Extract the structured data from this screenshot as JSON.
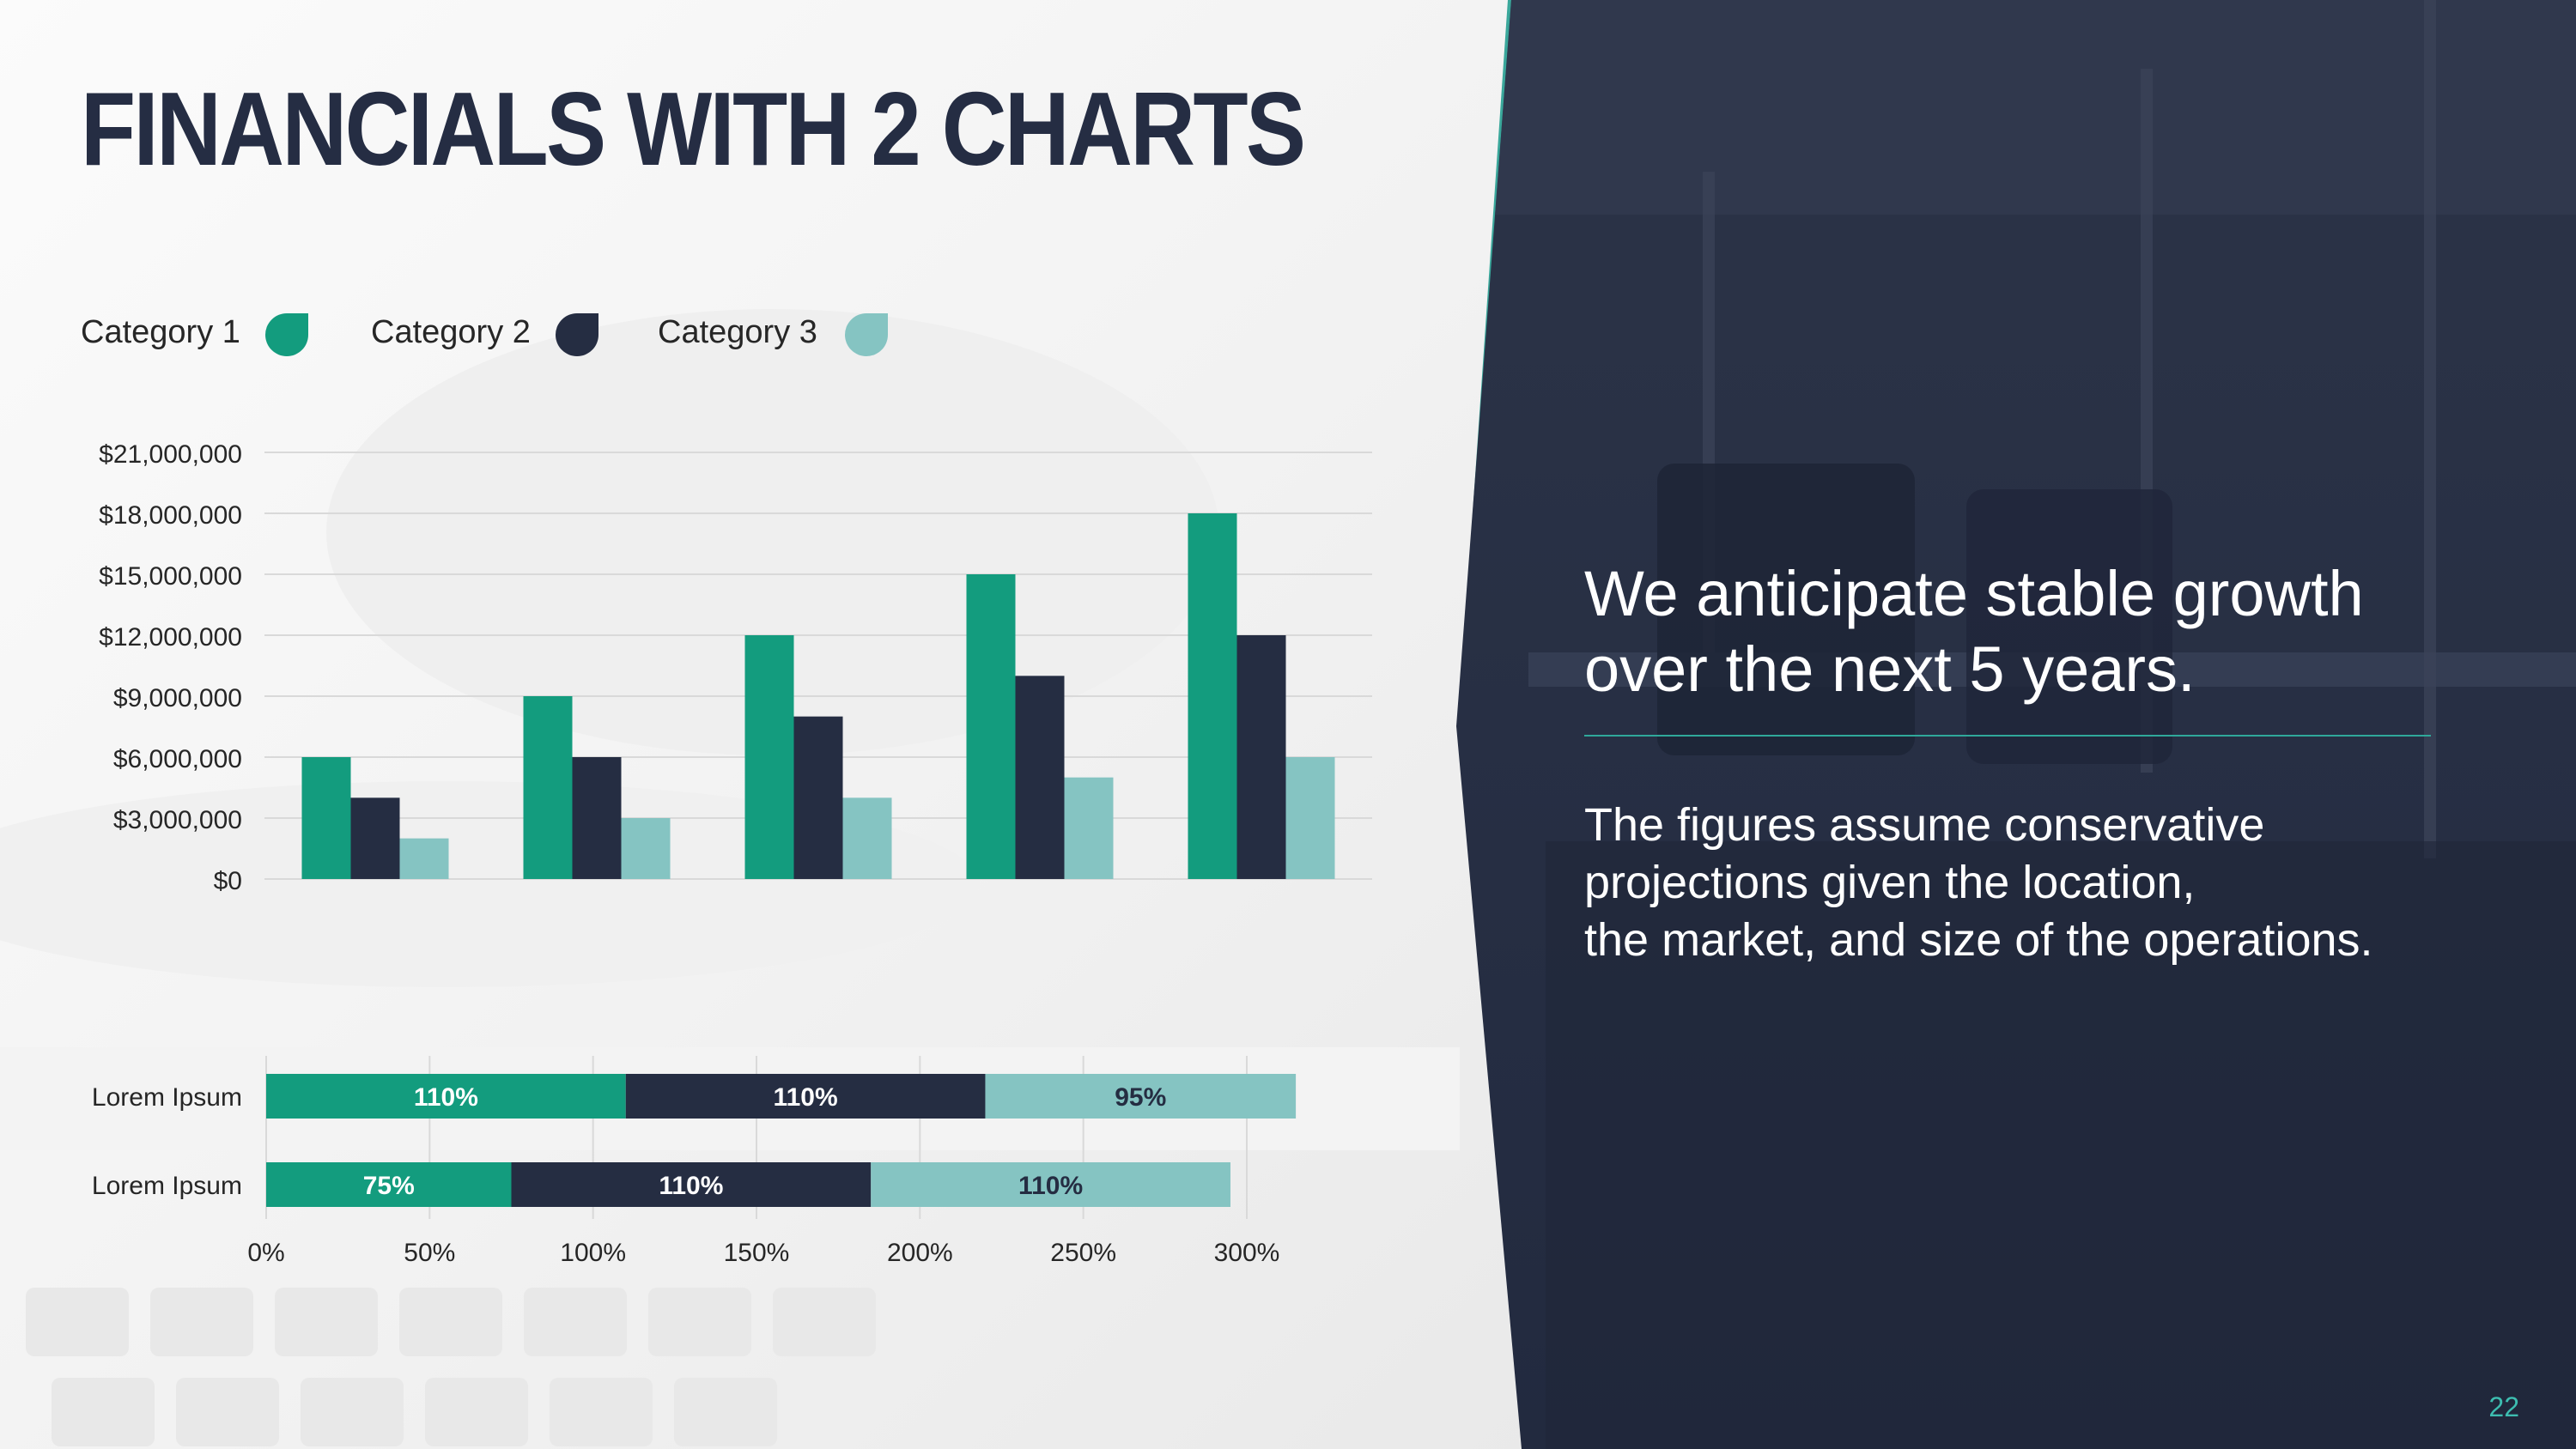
{
  "slide": {
    "title": "FINANCIALS WITH 2 CHARTS",
    "headline_lines": [
      "We anticipate stable growth",
      "over the next 5 years."
    ],
    "body_lines": [
      "The figures assume conservative",
      "projections given the location,",
      "the market, and size of the operations."
    ],
    "page_number": "22"
  },
  "colors": {
    "title": "#252d43",
    "category_1": "#139c7e",
    "category_2": "#252d42",
    "category_3": "#85c4c2",
    "panel": "#252d42",
    "accent": "#2fa89a",
    "grid": "#d9d9d9",
    "tick_text": "#262626",
    "page_number": "#3dbdb0"
  },
  "legend": [
    {
      "label": "Category 1",
      "color": "#139c7e"
    },
    {
      "label": "Category 2",
      "color": "#252d42"
    },
    {
      "label": "Category 3",
      "color": "#85c4c2"
    }
  ],
  "chart_data": [
    {
      "type": "bar",
      "categories": [
        "",
        "",
        "",
        "",
        ""
      ],
      "series": [
        {
          "name": "Category 1",
          "values": [
            6000000,
            9000000,
            12000000,
            15000000,
            18000000
          ]
        },
        {
          "name": "Category 2",
          "values": [
            4000000,
            6000000,
            8000000,
            10000000,
            12000000
          ]
        },
        {
          "name": "Category 3",
          "values": [
            2000000,
            3000000,
            4000000,
            5000000,
            6000000
          ]
        }
      ],
      "ylim": [
        0,
        21000000
      ],
      "ytick_labels": [
        "$0",
        "$3,000,000",
        "$6,000,000",
        "$9,000,000",
        "$12,000,000",
        "$15,000,000",
        "$18,000,000",
        "$21,000,000"
      ],
      "grid": true,
      "legend_position": "top-left"
    },
    {
      "type": "bar",
      "orientation": "horizontal",
      "stacked": true,
      "categories": [
        "Lorem Ipsum",
        "Lorem Ipsum"
      ],
      "series": [
        {
          "name": "Category 1",
          "values": [
            110,
            75
          ],
          "labels": [
            "110%",
            "75%"
          ]
        },
        {
          "name": "Category 2",
          "values": [
            110,
            110
          ],
          "labels": [
            "110%",
            "110%"
          ]
        },
        {
          "name": "Category 3",
          "values": [
            95,
            110
          ],
          "labels": [
            "95%",
            "110%"
          ]
        }
      ],
      "xlim": [
        0,
        300
      ],
      "xtick_labels": [
        "0%",
        "50%",
        "100%",
        "150%",
        "200%",
        "250%",
        "300%"
      ],
      "grid": true
    }
  ]
}
